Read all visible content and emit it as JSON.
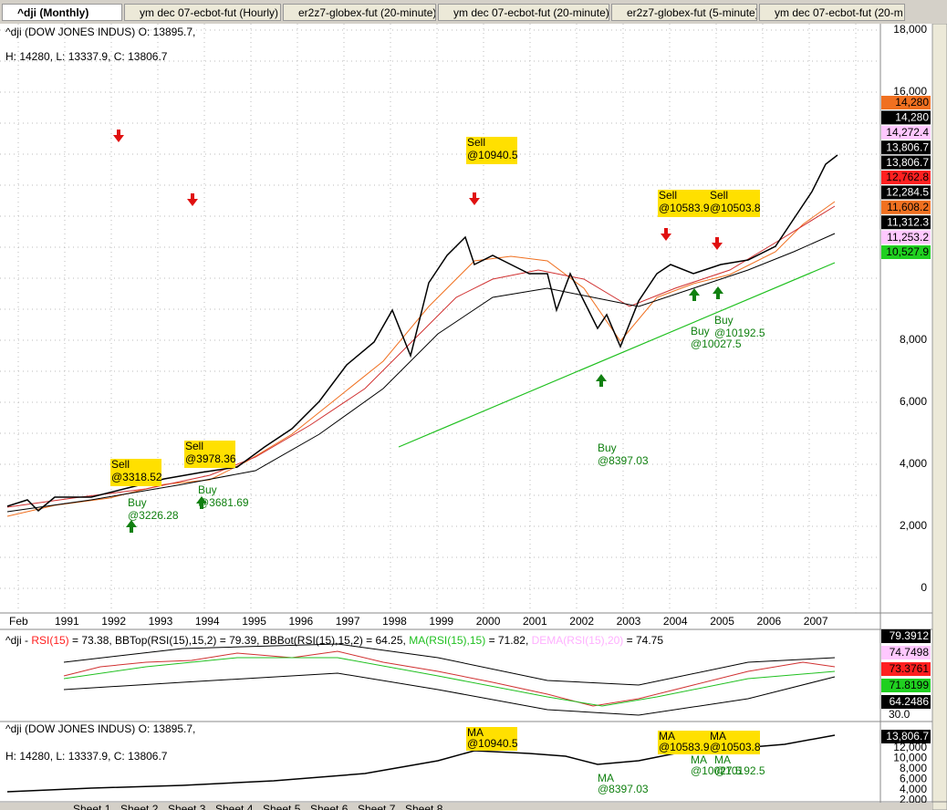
{
  "tabs": [
    "^dji (Monthly)",
    "ym   dec 07-ecbot-fut (Hourly)",
    "er2z7-globex-fut (20-minute)",
    "ym   dec 07-ecbot-fut (20-minute)",
    "er2z7-globex-fut (5-minute)",
    "ym   dec 07-ecbot-fut (20-m"
  ],
  "main_pane": {
    "header": [
      "^dji (DOW JONES INDUS) O: 13895.7, ",
      "H: 14280, L: 13337.9, C: 13806.7"
    ],
    "price_axis": [
      "18,000",
      "16,000",
      "8,000",
      "6,000",
      "4,000",
      "2,000",
      "0"
    ],
    "price_tags": [
      {
        "text": "14,280",
        "color": "#f07020"
      },
      {
        "text": "14,280",
        "color": "#000000"
      },
      {
        "text": "14,272.4",
        "color": "#ffc8ff"
      },
      {
        "text": "13,806.7",
        "color": "#000000"
      },
      {
        "text": "13,806.7",
        "color": "#000000"
      },
      {
        "text": "12,762.8",
        "color": "#ff2020"
      },
      {
        "text": "12,284.5",
        "color": "#000000"
      },
      {
        "text": "11,608.2",
        "color": "#f07020"
      },
      {
        "text": "11,312.3",
        "color": "#000000"
      },
      {
        "text": "11,253.2",
        "color": "#ffc8ff"
      },
      {
        "text": "10,527.9",
        "color": "#20d020"
      }
    ],
    "x_axis": [
      "Feb",
      "1991",
      "1992",
      "1993",
      "1994",
      "1995",
      "1996",
      "1997",
      "1998",
      "1999",
      "2000",
      "2001",
      "2002",
      "2003",
      "2004",
      "2005",
      "2006",
      "2007"
    ],
    "signals": [
      {
        "kind": "sell",
        "label": "Sell",
        "price": "@3318.52"
      },
      {
        "kind": "sell",
        "label": "Sell",
        "price": "@3978.36"
      },
      {
        "kind": "sell",
        "label": "Sell",
        "price": "@10940.5"
      },
      {
        "kind": "sell",
        "label": "Sell",
        "price": "@10583.9"
      },
      {
        "kind": "sell",
        "label": "Sell",
        "price": "@10503.8"
      },
      {
        "kind": "buy",
        "label": "Buy",
        "price": "@3226.28"
      },
      {
        "kind": "buy",
        "label": "Buy",
        "price": "@3681.69"
      },
      {
        "kind": "buy",
        "label": "Buy",
        "price": "@8397.03"
      },
      {
        "kind": "buy",
        "label": "Buy",
        "price": "@10027.5"
      },
      {
        "kind": "buy",
        "label": "Buy",
        "price": "@10192.5"
      }
    ]
  },
  "rsi_pane": {
    "header": [
      {
        "text": "^dji - ",
        "color": "#000000"
      },
      {
        "text": "RSI(15)",
        "color": "#ff2020"
      },
      {
        "text": " = 73.38, BBTop(RSI(15),15,2) = 79.39, BBBot(RSI(15),15,2) = 64.25, ",
        "color": "#000000"
      },
      {
        "text": "MA(RSI(15),15)",
        "color": "#20c020"
      },
      {
        "text": " = 71.82, ",
        "color": "#000000"
      },
      {
        "text": "DEMA(RSI(15),20)",
        "color": "#ffb0ff"
      },
      {
        "text": " = 74.75",
        "color": "#000000"
      }
    ],
    "tags": [
      {
        "text": "79.3912",
        "color": "#000000"
      },
      {
        "text": "74.7498",
        "color": "#ffc8ff"
      },
      {
        "text": "73.3761",
        "color": "#ff2020"
      },
      {
        "text": "71.8199",
        "color": "#20d020"
      },
      {
        "text": "64.2486",
        "color": "#000000"
      }
    ],
    "bottom_label": "30.0"
  },
  "bottom_pane": {
    "header": [
      "^dji (DOW JONES INDUS) O: 13895.7, ",
      "H: 14280, L: 13337.9, C: 13806.7"
    ],
    "tag": "13,806.7",
    "axis": [
      "12,000",
      "10,000",
      "8,000",
      "6,000",
      "4,000",
      "2,000"
    ],
    "signals": [
      {
        "label": "MA",
        "price": "@10940.5"
      },
      {
        "label": "MA",
        "price": "@10583.9"
      },
      {
        "label": "MA",
        "price": "@10503.8"
      },
      {
        "label": "MA",
        "price": "@8397.03"
      },
      {
        "label": "MA",
        "price": "@10027.5"
      },
      {
        "label": "MA",
        "price": "@10192.5"
      }
    ]
  },
  "sheets": [
    "Sheet 1",
    "Sheet 2",
    "Sheet 3",
    "Sheet 4",
    "Sheet 5",
    "Sheet 6",
    "Sheet 7",
    "Sheet 8"
  ]
}
